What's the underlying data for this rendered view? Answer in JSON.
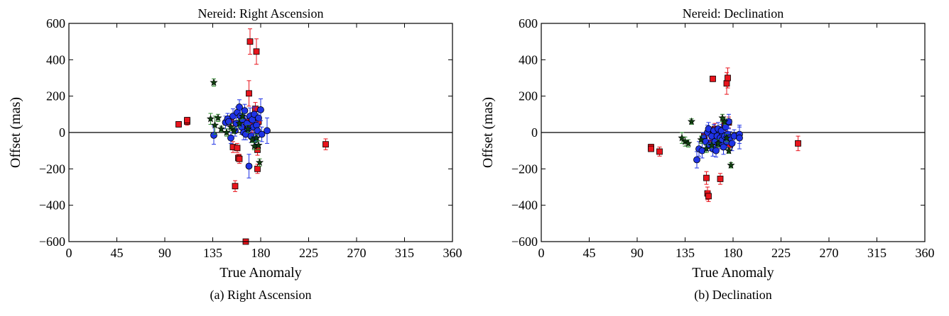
{
  "colors": {
    "red": "#e8141c",
    "blue": "#1f33e6",
    "green": "#2b8a2b",
    "dark_green": "#0f3d0f"
  },
  "chart_data": [
    {
      "type": "scatter",
      "title": "Nereid: Right Ascension",
      "xlabel": "True Anomaly",
      "ylabel": "Offset (mas)",
      "xlim": [
        0,
        360
      ],
      "ylim": [
        -600,
        600
      ],
      "xticks": [
        0,
        45,
        90,
        135,
        180,
        225,
        270,
        315,
        360
      ],
      "yticks": [
        -600,
        -400,
        -200,
        0,
        200,
        400,
        600
      ],
      "grid": false,
      "hline": 0,
      "caption": "(a) Right Ascension",
      "series": [
        {
          "marker": "square",
          "color": "#e8141c",
          "points": [
            [
              103,
              45,
              15
            ],
            [
              111,
              60,
              20
            ],
            [
              111,
              68,
              15
            ],
            [
              152,
              65,
              25
            ],
            [
              154,
              -80,
              30
            ],
            [
              156,
              -295,
              30
            ],
            [
              158,
              -85,
              25
            ],
            [
              159,
              -140,
              20
            ],
            [
              160,
              -145,
              25
            ],
            [
              162,
              80,
              20
            ],
            [
              164,
              30,
              25
            ],
            [
              166,
              -600,
              10
            ],
            [
              168,
              60,
              30
            ],
            [
              169,
              215,
              70
            ],
            [
              170,
              500,
              70
            ],
            [
              172,
              40,
              40
            ],
            [
              174,
              80,
              40
            ],
            [
              175,
              130,
              35
            ],
            [
              176,
              445,
              70
            ],
            [
              177,
              -95,
              30
            ],
            [
              177,
              -200,
              25
            ],
            [
              178,
              60,
              25
            ],
            [
              241,
              -65,
              30
            ]
          ]
        },
        {
          "marker": "circle",
          "color": "#1f33e6",
          "points": [
            [
              136,
              -15,
              50
            ],
            [
              147,
              55,
              35
            ],
            [
              149,
              75,
              30
            ],
            [
              150,
              60,
              25
            ],
            [
              152,
              -30,
              30
            ],
            [
              154,
              90,
              40
            ],
            [
              156,
              10,
              30
            ],
            [
              157,
              50,
              35
            ],
            [
              158,
              110,
              30
            ],
            [
              160,
              140,
              40
            ],
            [
              161,
              90,
              35
            ],
            [
              162,
              30,
              40
            ],
            [
              163,
              70,
              30
            ],
            [
              164,
              0,
              40
            ],
            [
              165,
              120,
              35
            ],
            [
              166,
              -10,
              30
            ],
            [
              167,
              50,
              40
            ],
            [
              168,
              20,
              35
            ],
            [
              169,
              -185,
              65
            ],
            [
              170,
              90,
              45
            ],
            [
              171,
              -20,
              35
            ],
            [
              172,
              70,
              40
            ],
            [
              173,
              30,
              35
            ],
            [
              174,
              100,
              40
            ],
            [
              175,
              -40,
              35
            ],
            [
              176,
              40,
              35
            ],
            [
              177,
              10,
              40
            ],
            [
              178,
              80,
              40
            ],
            [
              180,
              125,
              60
            ],
            [
              181,
              -10,
              40
            ],
            [
              186,
              10,
              70
            ]
          ]
        },
        {
          "marker": "star",
          "color": "#0f3d0f",
          "errcolor": "#2b8a2b",
          "points": [
            [
              133,
              75,
              30
            ],
            [
              136,
              275,
              20
            ],
            [
              137,
              40,
              50
            ],
            [
              140,
              80,
              20
            ],
            [
              143,
              20,
              15
            ],
            [
              148,
              0,
              20
            ],
            [
              152,
              30,
              20
            ],
            [
              155,
              10,
              15
            ],
            [
              160,
              50,
              20
            ],
            [
              163,
              90,
              15
            ],
            [
              168,
              20,
              20
            ],
            [
              172,
              -40,
              15
            ],
            [
              174,
              -75,
              20
            ],
            [
              176,
              -30,
              20
            ],
            [
              178,
              -70,
              25
            ],
            [
              179,
              -165,
              20
            ]
          ]
        }
      ]
    },
    {
      "type": "scatter",
      "title": "Nereid: Declination",
      "xlabel": "True Anomaly",
      "ylabel": "Offset (mas)",
      "xlim": [
        0,
        360
      ],
      "ylim": [
        -600,
        600
      ],
      "xticks": [
        0,
        45,
        90,
        135,
        180,
        225,
        270,
        315,
        360
      ],
      "yticks": [
        -600,
        -400,
        -200,
        0,
        200,
        400,
        600
      ],
      "grid": false,
      "hline": 0,
      "caption": "(b) Declination",
      "series": [
        {
          "marker": "square",
          "color": "#e8141c",
          "points": [
            [
              103,
              -80,
              15
            ],
            [
              103,
              -90,
              15
            ],
            [
              111,
              -105,
              25
            ],
            [
              153,
              -20,
              20
            ],
            [
              155,
              -250,
              35
            ],
            [
              156,
              -335,
              35
            ],
            [
              157,
              -350,
              30
            ],
            [
              159,
              -60,
              25
            ],
            [
              161,
              295,
              15
            ],
            [
              163,
              20,
              30
            ],
            [
              166,
              -60,
              30
            ],
            [
              168,
              -255,
              30
            ],
            [
              170,
              -20,
              35
            ],
            [
              172,
              40,
              30
            ],
            [
              174,
              270,
              60
            ],
            [
              175,
              300,
              55
            ],
            [
              176,
              55,
              30
            ],
            [
              177,
              -70,
              30
            ],
            [
              241,
              -60,
              40
            ]
          ]
        },
        {
          "marker": "circle",
          "color": "#1f33e6",
          "points": [
            [
              146,
              -150,
              45
            ],
            [
              148,
              -90,
              40
            ],
            [
              151,
              -100,
              40
            ],
            [
              152,
              -30,
              30
            ],
            [
              154,
              -50,
              35
            ],
            [
              156,
              0,
              40
            ],
            [
              157,
              20,
              35
            ],
            [
              158,
              -70,
              30
            ],
            [
              160,
              -20,
              40
            ],
            [
              161,
              -90,
              40
            ],
            [
              162,
              10,
              35
            ],
            [
              163,
              -50,
              30
            ],
            [
              164,
              -100,
              35
            ],
            [
              165,
              -20,
              40
            ],
            [
              166,
              20,
              35
            ],
            [
              167,
              -60,
              30
            ],
            [
              168,
              -30,
              40
            ],
            [
              169,
              10,
              35
            ],
            [
              170,
              -40,
              30
            ],
            [
              171,
              -80,
              40
            ],
            [
              172,
              -20,
              35
            ],
            [
              173,
              30,
              40
            ],
            [
              174,
              -50,
              30
            ],
            [
              175,
              -10,
              35
            ],
            [
              176,
              60,
              40
            ],
            [
              177,
              -30,
              35
            ],
            [
              179,
              -60,
              40
            ],
            [
              181,
              -20,
              35
            ],
            [
              186,
              -10,
              50
            ],
            [
              186,
              -30,
              60
            ]
          ]
        },
        {
          "marker": "star",
          "color": "#0f3d0f",
          "errcolor": "#2b8a2b",
          "points": [
            [
              132,
              -30,
              30
            ],
            [
              135,
              -50,
              25
            ],
            [
              138,
              -60,
              20
            ],
            [
              141,
              60,
              15
            ],
            [
              150,
              -40,
              20
            ],
            [
              155,
              -90,
              20
            ],
            [
              160,
              -70,
              15
            ],
            [
              166,
              -60,
              20
            ],
            [
              170,
              80,
              20
            ],
            [
              172,
              60,
              15
            ],
            [
              174,
              -30,
              20
            ],
            [
              176,
              -100,
              15
            ],
            [
              178,
              -180,
              15
            ]
          ]
        }
      ]
    }
  ]
}
